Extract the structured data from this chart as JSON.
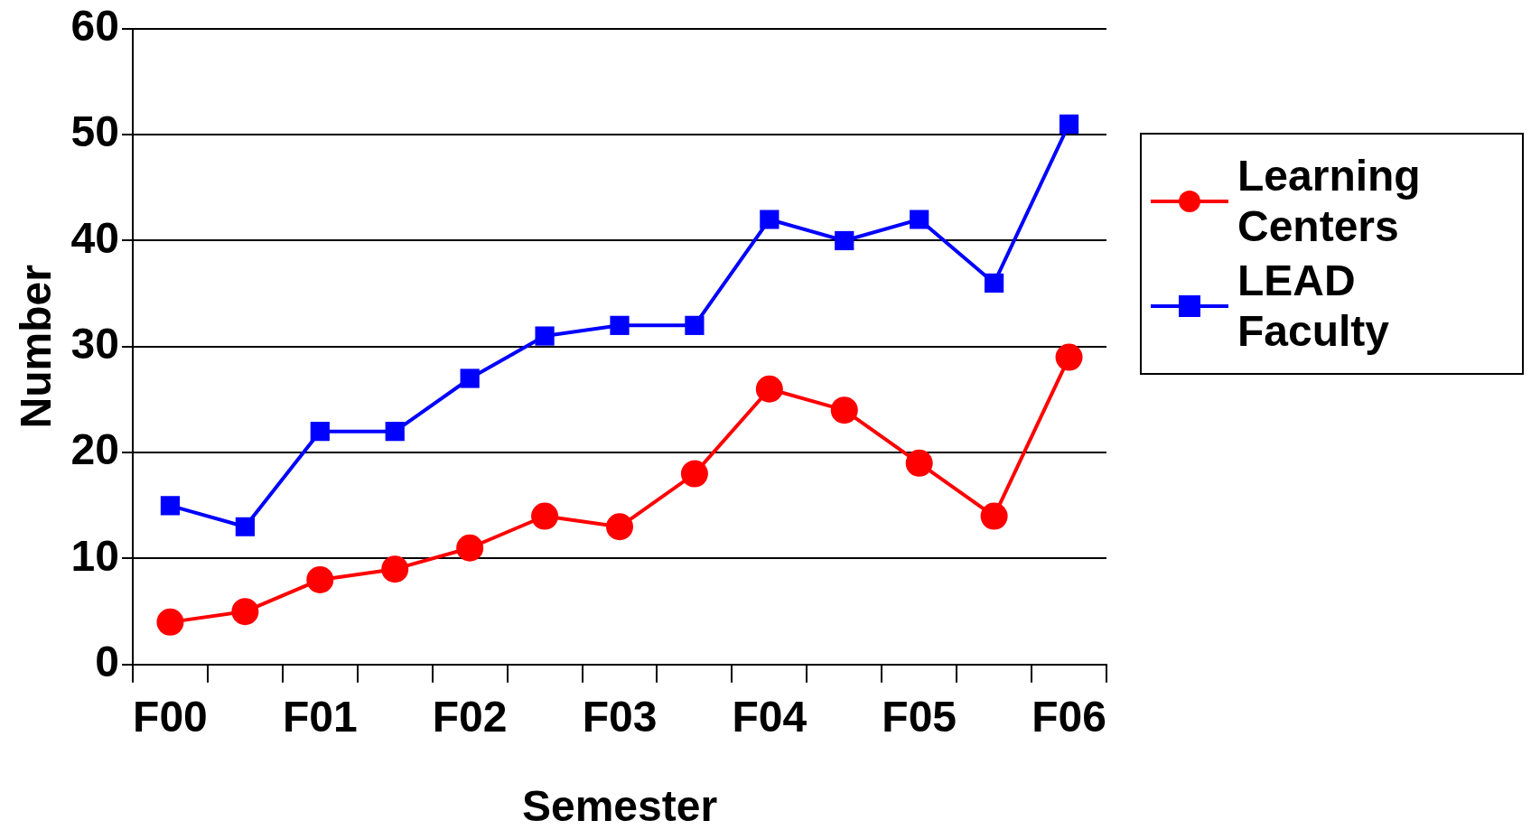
{
  "chart_data": {
    "type": "line",
    "xlabel": "Semester",
    "ylabel": "Number",
    "categories": [
      "F00",
      null,
      "F01",
      null,
      "F02",
      null,
      "F03",
      null,
      "F04",
      null,
      "F05",
      null,
      "F06"
    ],
    "series": [
      {
        "name": "Learning Centers",
        "color": "#ff0000",
        "marker": "circle",
        "values": [
          4,
          5,
          8,
          9,
          11,
          14,
          13,
          18,
          26,
          24,
          19,
          14,
          29
        ]
      },
      {
        "name": "LEAD Faculty",
        "color": "#0000ff",
        "marker": "square",
        "values": [
          15,
          13,
          22,
          22,
          27,
          31,
          32,
          32,
          42,
          40,
          42,
          36,
          51
        ]
      }
    ],
    "ylim": [
      0,
      60
    ],
    "yticks": [
      0,
      10,
      20,
      30,
      40,
      50,
      60
    ],
    "grid": "y",
    "legend": "right",
    "line_style": "solid"
  }
}
